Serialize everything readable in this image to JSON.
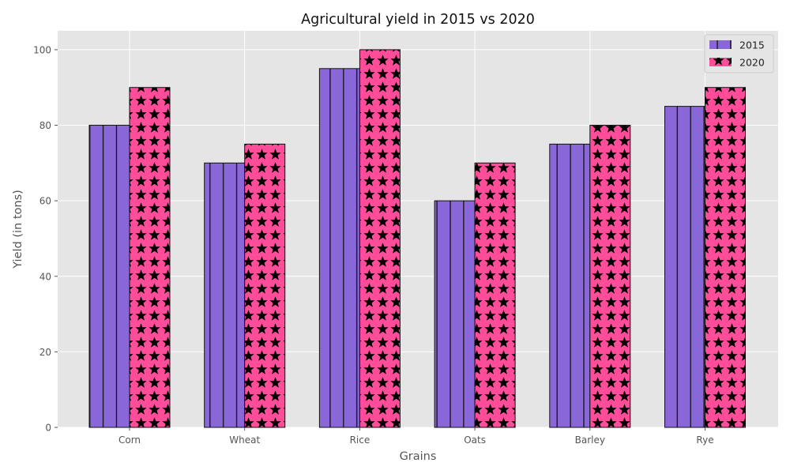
{
  "chart_data": {
    "type": "bar",
    "title": "Agricultural yield in 2015 vs 2020",
    "xlabel": "Grains",
    "ylabel": "Yield (in tons)",
    "categories": [
      "Corn",
      "Wheat",
      "Rice",
      "Oats",
      "Barley",
      "Rye"
    ],
    "series": [
      {
        "name": "2015",
        "values": [
          80,
          70,
          95,
          60,
          75,
          85
        ],
        "color": "#8A67D9",
        "hatch": "vertical-lines"
      },
      {
        "name": "2020",
        "values": [
          90,
          75,
          100,
          70,
          80,
          90
        ],
        "color": "#FF4D9A",
        "hatch": "stars"
      }
    ],
    "ylim": [
      0,
      105
    ],
    "yticks": [
      0,
      20,
      40,
      60,
      80,
      100
    ],
    "grid": true,
    "legend_position": "top-right",
    "background_color": "#E5E5E5"
  }
}
